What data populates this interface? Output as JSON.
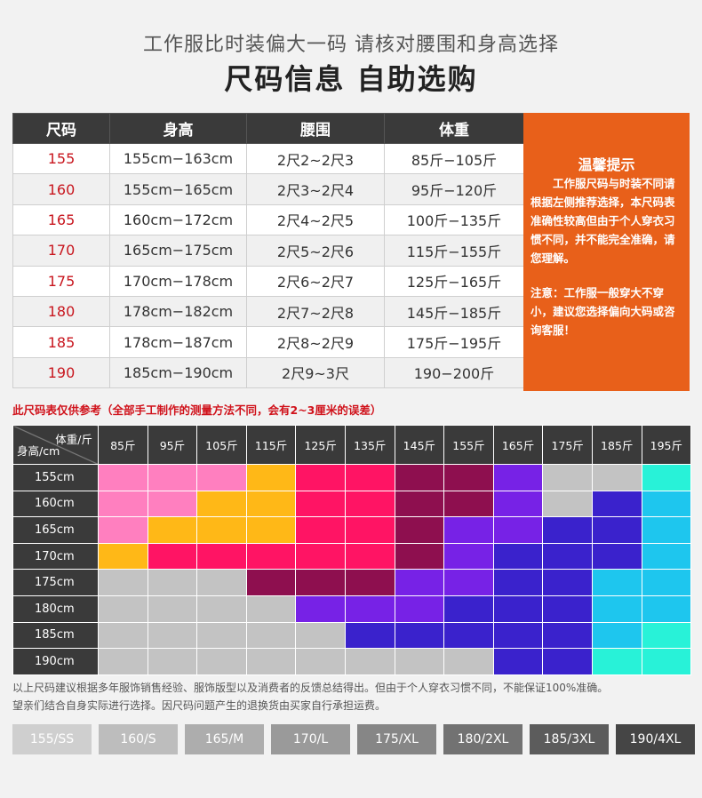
{
  "header": {
    "subtitle": "工作服比时装偏大一码 请核对腰围和身高选择",
    "title": "尺码信息 自助选购"
  },
  "size_table": {
    "headers": [
      "尺码",
      "身高",
      "腰围",
      "体重"
    ],
    "rows": [
      [
        "155",
        "155cm−163cm",
        "2尺2~2尺3",
        "85斤−105斤"
      ],
      [
        "160",
        "155cm−165cm",
        "2尺3~2尺4",
        "95斤−120斤"
      ],
      [
        "165",
        "160cm−172cm",
        "2尺4~2尺5",
        "100斤−135斤"
      ],
      [
        "170",
        "165cm−175cm",
        "2尺5~2尺6",
        "115斤−155斤"
      ],
      [
        "175",
        "170cm−178cm",
        "2尺6~2尺7",
        "125斤−165斤"
      ],
      [
        "180",
        "178cm−182cm",
        "2尺7~2尺8",
        "145斤−185斤"
      ],
      [
        "185",
        "178cm−187cm",
        "2尺8~2尺9",
        "175斤−195斤"
      ],
      [
        "190",
        "185cm−190cm",
        "2尺9~3尺",
        "190−200斤"
      ]
    ]
  },
  "tips": {
    "title": "温馨提示",
    "body": "工作服尺码与时装不同请根据左侧推荐选择，本尺码表准确性较高但由于个人穿衣习惯不同，并不能完全准确，请您理解。",
    "note": "注意：工作服一般穿大不穿小，建议您选择偏向大码或咨询客服！"
  },
  "disclaimer": "此尺码表仅供参考（全部手工制作的测量方法不同，会有2~3厘米的误差）",
  "grid": {
    "corner_top": "体重/斤",
    "corner_bottom": "身高/cm",
    "weights": [
      "85斤",
      "95斤",
      "105斤",
      "115斤",
      "125斤",
      "135斤",
      "145斤",
      "155斤",
      "165斤",
      "175斤",
      "185斤",
      "195斤"
    ],
    "heights": [
      "155cm",
      "160cm",
      "165cm",
      "170cm",
      "175cm",
      "180cm",
      "185cm",
      "190cm"
    ],
    "colors": {
      "155/SS": "#ff7fbf",
      "160/S": "#ffb817",
      "165/M": "#ff1464",
      "170/L": "#8e0f4f",
      "175/XL": "#7722e6",
      "180/2XL": "#3a22cc",
      "185/3XL": "#1ec6ee",
      "190/4XL": "#28f2d8",
      "none": "#c3c3c3"
    },
    "cells": [
      [
        "155/SS",
        "155/SS",
        "155/SS",
        "160/S",
        "165/M",
        "165/M",
        "170/L",
        "170/L",
        "175/XL",
        "none",
        "none",
        "190/4XL"
      ],
      [
        "155/SS",
        "155/SS",
        "160/S",
        "160/S",
        "165/M",
        "165/M",
        "170/L",
        "170/L",
        "175/XL",
        "none",
        "180/2XL",
        "185/3XL"
      ],
      [
        "155/SS",
        "160/S",
        "160/S",
        "160/S",
        "165/M",
        "165/M",
        "170/L",
        "175/XL",
        "175/XL",
        "180/2XL",
        "180/2XL",
        "185/3XL"
      ],
      [
        "160/S",
        "165/M",
        "165/M",
        "165/M",
        "165/M",
        "165/M",
        "170/L",
        "175/XL",
        "180/2XL",
        "180/2XL",
        "180/2XL",
        "185/3XL"
      ],
      [
        "none",
        "none",
        "none",
        "170/L",
        "170/L",
        "170/L",
        "175/XL",
        "175/XL",
        "180/2XL",
        "180/2XL",
        "185/3XL",
        "185/3XL"
      ],
      [
        "none",
        "none",
        "none",
        "none",
        "175/XL",
        "175/XL",
        "175/XL",
        "180/2XL",
        "180/2XL",
        "180/2XL",
        "185/3XL",
        "185/3XL"
      ],
      [
        "none",
        "none",
        "none",
        "none",
        "none",
        "180/2XL",
        "180/2XL",
        "180/2XL",
        "180/2XL",
        "180/2XL",
        "185/3XL",
        "190/4XL"
      ],
      [
        "none",
        "none",
        "none",
        "none",
        "none",
        "none",
        "none",
        "none",
        "180/2XL",
        "180/2XL",
        "190/4XL",
        "190/4XL"
      ]
    ]
  },
  "footnote": {
    "line1": "以上尺码建议根据多年服饰销售经验、服饰版型以及消费者的反馈总结得出。但由于个人穿衣习惯不同，不能保证100%准确。",
    "line2": "望亲们结合自身实际进行选择。因尺码问题产生的退换货由买家自行承担运费。"
  },
  "size_tags": [
    {
      "label": "155/SS",
      "color": "#cfcfcf"
    },
    {
      "label": "160/S",
      "color": "#bdbdbd"
    },
    {
      "label": "165/M",
      "color": "#adadad"
    },
    {
      "label": "170/L",
      "color": "#9a9a9a"
    },
    {
      "label": "175/XL",
      "color": "#868686"
    },
    {
      "label": "180/2XL",
      "color": "#727272"
    },
    {
      "label": "185/3XL",
      "color": "#5c5c5c"
    },
    {
      "label": "190/4XL",
      "color": "#454545"
    }
  ]
}
